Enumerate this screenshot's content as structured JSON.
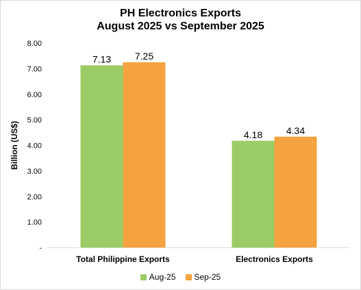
{
  "chart_data": {
    "type": "bar",
    "title_line1": "PH Electronics Exports",
    "title_line2": "August 2025 vs September 2025",
    "ylabel": "Billion (US$)",
    "xlabel": "",
    "ylim": [
      0,
      8
    ],
    "yticks": [
      "-",
      "1.00",
      "2.00",
      "3.00",
      "4.00",
      "5.00",
      "6.00",
      "7.00",
      "8.00"
    ],
    "categories": [
      "Total Philippine Exports",
      "Electronics Exports"
    ],
    "series": [
      {
        "name": "Aug-25",
        "color": "#9ccc65",
        "values": [
          7.13,
          4.18
        ],
        "labels": [
          "7.13",
          "4.18"
        ]
      },
      {
        "name": "Sep-25",
        "color": "#f4a340",
        "values": [
          7.25,
          4.34
        ],
        "labels": [
          "7.25",
          "4.34"
        ]
      }
    ],
    "grid": false,
    "legend_position": "bottom"
  }
}
